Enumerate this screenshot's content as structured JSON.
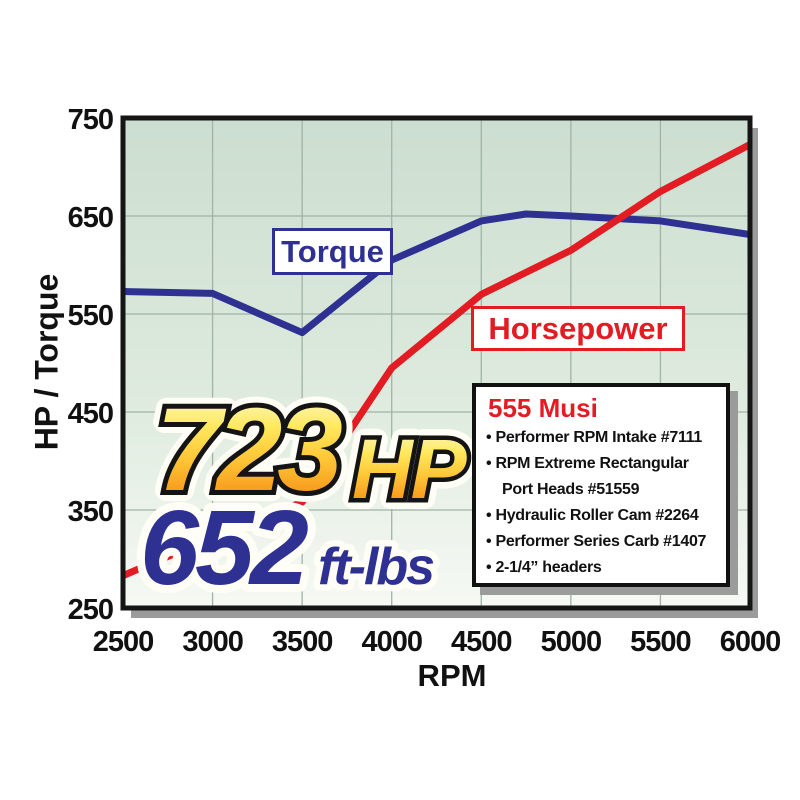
{
  "chart_data": {
    "type": "line",
    "title": "",
    "xlabel": "RPM",
    "ylabel": "HP / Torque",
    "xlim": [
      2500,
      6000
    ],
    "ylim": [
      250,
      750
    ],
    "xticks": [
      2500,
      3000,
      3500,
      4000,
      4500,
      5000,
      5500,
      6000
    ],
    "yticks": [
      250,
      350,
      450,
      550,
      650,
      750
    ],
    "grid": true,
    "legend_position": "floating-boxed-labels",
    "series": [
      {
        "name": "Torque",
        "color": "#2e3192",
        "x": [
          2500,
          3000,
          3500,
          4000,
          4500,
          4750,
          5000,
          5500,
          6000
        ],
        "values": [
          573,
          571,
          531,
          605,
          645,
          652,
          650,
          645,
          631
        ]
      },
      {
        "name": "Horsepower",
        "color": "#e31b23",
        "x": [
          2500,
          3000,
          3500,
          4000,
          4500,
          5000,
          5500,
          6000
        ],
        "values": [
          283,
          322,
          358,
          495,
          570,
          615,
          675,
          723
        ]
      }
    ]
  },
  "annotations": {
    "hp_value": "723",
    "hp_unit": "HP",
    "torque_value": "652",
    "torque_unit": "ft-lbs"
  },
  "spec_box": {
    "title": "555 Musi",
    "title_color": "#e31b23",
    "items": [
      "Performer RPM Intake #7111",
      "RPM Extreme Rectangular Port Heads #51559",
      "Hydraulic Roller Cam #2264",
      "Performer Series Carb #1407",
      "2-1/4” headers"
    ]
  },
  "colors": {
    "background": "#ffffff",
    "plot_bg_top": "#ccded1",
    "plot_bg_bottom": "#f6f9f4",
    "gridline": "#9fb3a7",
    "border": "#151515",
    "shadow": "#9b9b9b",
    "torque_line": "#2e3192",
    "horsepower_line": "#e31b23",
    "gold_top": "#fffce8",
    "gold_bottom": "#ef7d17"
  }
}
